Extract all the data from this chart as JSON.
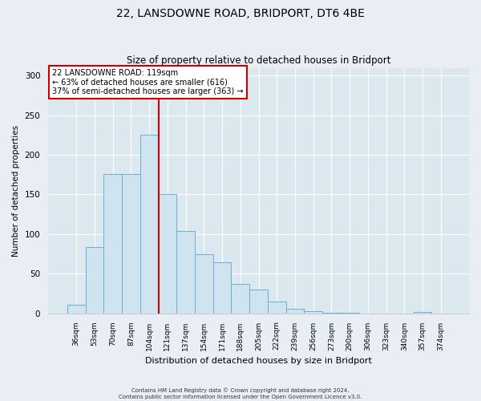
{
  "title": "22, LANSDOWNE ROAD, BRIDPORT, DT6 4BE",
  "subtitle": "Size of property relative to detached houses in Bridport",
  "xlabel": "Distribution of detached houses by size in Bridport",
  "ylabel": "Number of detached properties",
  "bar_labels": [
    "36sqm",
    "53sqm",
    "70sqm",
    "87sqm",
    "104sqm",
    "121sqm",
    "137sqm",
    "154sqm",
    "171sqm",
    "188sqm",
    "205sqm",
    "222sqm",
    "239sqm",
    "256sqm",
    "273sqm",
    "290sqm",
    "306sqm",
    "323sqm",
    "340sqm",
    "357sqm",
    "374sqm"
  ],
  "bar_values": [
    11,
    84,
    176,
    176,
    225,
    150,
    104,
    75,
    64,
    37,
    30,
    15,
    6,
    3,
    1,
    1,
    0,
    0,
    0,
    2,
    0
  ],
  "bar_color": "#d0e4f0",
  "bar_edge_color": "#6aafd6",
  "vline_x_index": 5,
  "vline_color": "#cc0000",
  "annotation_title": "22 LANSDOWNE ROAD: 119sqm",
  "annotation_line1": "← 63% of detached houses are smaller (616)",
  "annotation_line2": "37% of semi-detached houses are larger (363) →",
  "annotation_box_color": "#ffffff",
  "annotation_box_edge": "#cc0000",
  "ylim": [
    0,
    310
  ],
  "yticks": [
    0,
    50,
    100,
    150,
    200,
    250,
    300
  ],
  "footer1": "Contains HM Land Registry data © Crown copyright and database right 2024.",
  "footer2": "Contains public sector information licensed under the Open Government Licence v3.0.",
  "bg_color": "#e8eef4",
  "grid_color": "#ffffff",
  "plot_bg_color": "#dce8f0"
}
